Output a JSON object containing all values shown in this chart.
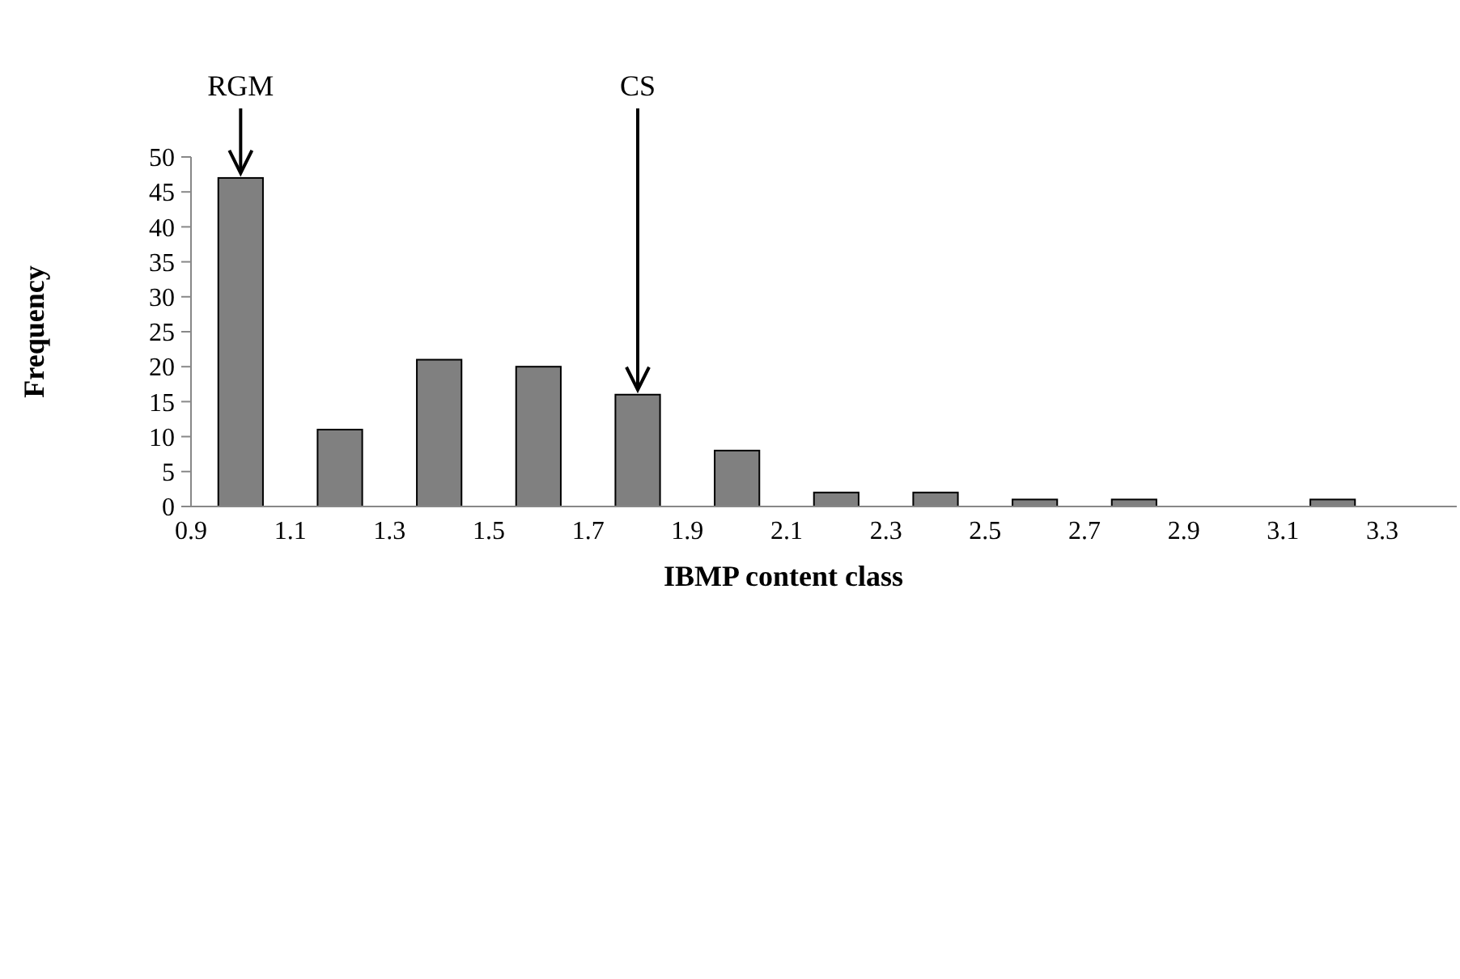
{
  "chart_data": {
    "type": "bar",
    "xlabel": "IBMP content class",
    "ylabel": "Frequency",
    "x": [
      1.0,
      1.2,
      1.4,
      1.6,
      1.8,
      2.0,
      2.2,
      2.4,
      2.6,
      2.8,
      3.0,
      3.2
    ],
    "values": [
      47,
      11,
      21,
      20,
      16,
      8,
      2,
      2,
      1,
      1,
      0,
      1
    ],
    "color": "#808080",
    "xlim": [
      0.9,
      3.45
    ],
    "xticks": [
      0.9,
      1.1,
      1.3,
      1.5,
      1.7,
      1.9,
      2.1,
      2.3,
      2.5,
      2.7,
      2.9,
      3.1,
      3.3
    ],
    "ylim": [
      0,
      50
    ],
    "yticks": [
      0,
      5,
      10,
      15,
      20,
      25,
      30,
      35,
      40,
      45,
      50
    ],
    "grid": false,
    "annotations": [
      {
        "text": "RGM",
        "x": 1.0,
        "y": 47
      },
      {
        "text": "CS",
        "x": 1.8,
        "y": 16
      }
    ]
  }
}
